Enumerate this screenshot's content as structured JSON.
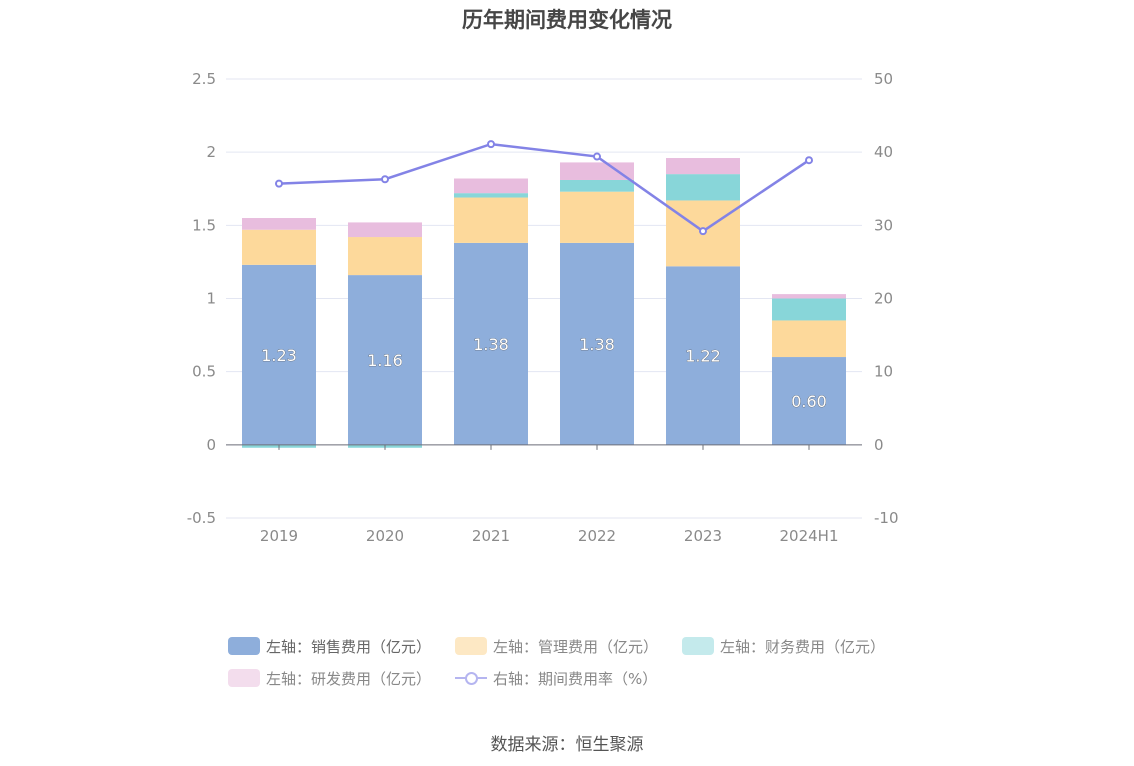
{
  "chart_data": {
    "type": "bar",
    "title": "历年期间费用变化情况",
    "categories": [
      "2019",
      "2020",
      "2021",
      "2022",
      "2023",
      "2024H1"
    ],
    "stacked": true,
    "y_left": {
      "ticks": [
        "2.5",
        "2",
        "1.5",
        "1",
        "0.5",
        "0",
        "-0.5"
      ],
      "ylim": [
        -0.5,
        2.5
      ]
    },
    "y_right": {
      "ticks": [
        "50",
        "40",
        "30",
        "20",
        "10",
        "0",
        "-10"
      ],
      "ylim": [
        -10,
        50
      ]
    },
    "series": [
      {
        "name": "左轴：销售费用（亿元）",
        "color": "#8eaedb",
        "values": [
          1.23,
          1.16,
          1.38,
          1.38,
          1.22,
          0.6
        ],
        "labels": [
          "1.23",
          "1.16",
          "1.38",
          "1.38",
          "1.22",
          "0.60"
        ]
      },
      {
        "name": "左轴：管理费用（亿元）",
        "color": "#fdd99b",
        "values": [
          0.24,
          0.26,
          0.31,
          0.35,
          0.45,
          0.25
        ]
      },
      {
        "name": "左轴：财务费用（亿元）",
        "color": "#88d6d9",
        "values": [
          -0.02,
          -0.02,
          0.03,
          0.08,
          0.18,
          0.15
        ]
      },
      {
        "name": "左轴：研发费用（亿元）",
        "color": "#e8bdde",
        "values": [
          0.08,
          0.1,
          0.1,
          0.12,
          0.11,
          0.03
        ]
      },
      {
        "name": "右轴：期间费用率（%）",
        "type": "line",
        "axis": "right",
        "color": "#8383e6",
        "values": [
          35.7,
          36.3,
          41.1,
          39.4,
          29.2,
          38.9
        ]
      }
    ],
    "legend_position": "bottom",
    "grid": true
  },
  "source": "数据来源：恒生聚源"
}
